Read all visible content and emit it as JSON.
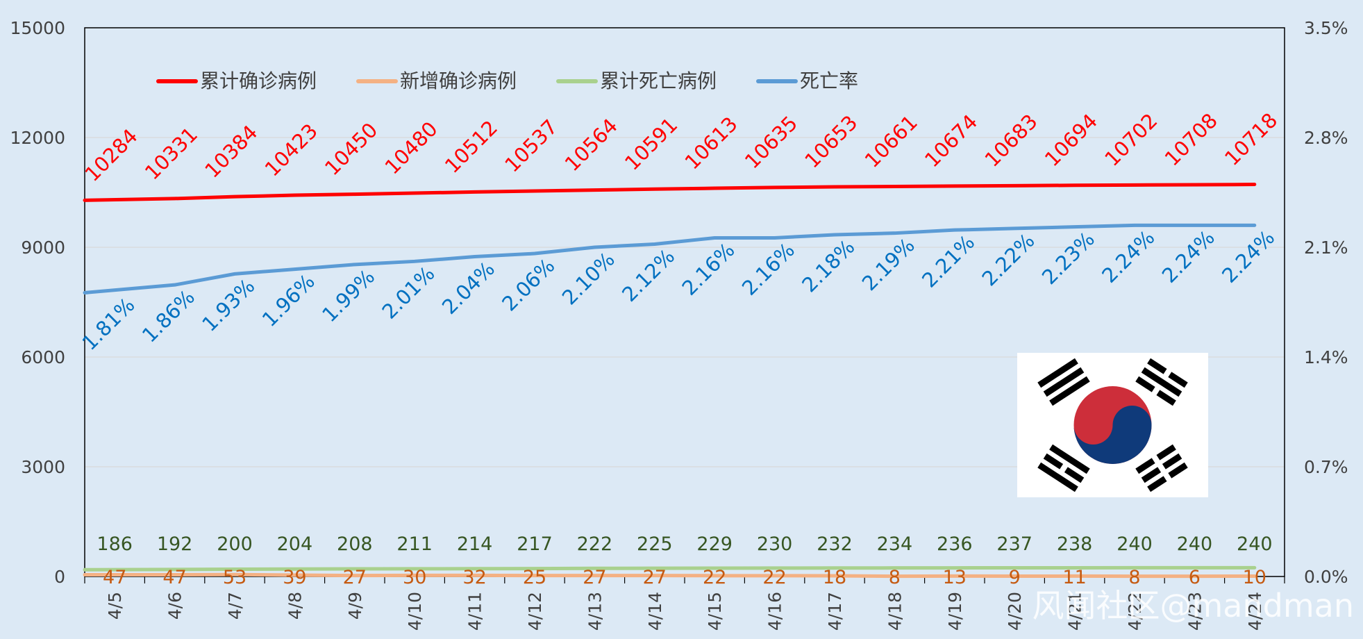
{
  "chart_data": {
    "type": "line",
    "categories": [
      "4/5",
      "4/6",
      "4/7",
      "4/8",
      "4/9",
      "4/10",
      "4/11",
      "4/12",
      "4/13",
      "4/14",
      "4/15",
      "4/16",
      "4/17",
      "4/18",
      "4/19",
      "4/20",
      "4/21",
      "4/22",
      "4/23",
      "4/24"
    ],
    "left_axis": {
      "ylim": [
        0,
        15000
      ],
      "ticks": [
        "0",
        "3000",
        "6000",
        "9000",
        "12000",
        "15000"
      ]
    },
    "right_axis": {
      "ylim": [
        0,
        3.5
      ],
      "ticks": [
        "0.0%",
        "0.7%",
        "1.4%",
        "2.1%",
        "2.8%",
        "3.5%"
      ]
    },
    "series": [
      {
        "name": "累计确诊病例",
        "color": "#ff0000",
        "axis": "left",
        "label_color": "#ff0000",
        "values": [
          10284,
          10331,
          10384,
          10423,
          10450,
          10480,
          10512,
          10537,
          10564,
          10591,
          10613,
          10635,
          10653,
          10661,
          10674,
          10683,
          10694,
          10702,
          10708,
          10718
        ],
        "labels": [
          "10284",
          "10331",
          "10384",
          "10423",
          "10450",
          "10480",
          "10512",
          "10537",
          "10564",
          "10591",
          "10613",
          "10635",
          "10653",
          "10661",
          "10674",
          "10683",
          "10694",
          "10702",
          "10708",
          "10718"
        ]
      },
      {
        "name": "新增确诊病例",
        "color": "#f4b183",
        "axis": "left",
        "label_color": "#c55a11",
        "values": [
          47,
          47,
          53,
          39,
          27,
          30,
          32,
          25,
          27,
          27,
          22,
          22,
          18,
          8,
          13,
          9,
          11,
          8,
          6,
          10
        ],
        "labels": [
          "47",
          "47",
          "53",
          "39",
          "27",
          "30",
          "32",
          "25",
          "27",
          "27",
          "22",
          "22",
          "18",
          "8",
          "13",
          "9",
          "11",
          "8",
          "6",
          "10"
        ]
      },
      {
        "name": "累计死亡病例",
        "color": "#a9d18e",
        "axis": "left",
        "label_color": "#375623",
        "values": [
          186,
          192,
          200,
          204,
          208,
          211,
          214,
          217,
          222,
          225,
          229,
          230,
          232,
          234,
          236,
          237,
          238,
          240,
          240,
          240
        ],
        "labels": [
          "186",
          "192",
          "200",
          "204",
          "208",
          "211",
          "214",
          "217",
          "222",
          "225",
          "229",
          "230",
          "232",
          "234",
          "236",
          "237",
          "238",
          "240",
          "240",
          "240"
        ]
      },
      {
        "name": "死亡率",
        "color": "#5b9bd5",
        "axis": "right",
        "label_color": "#0070c0",
        "values": [
          1.81,
          1.86,
          1.93,
          1.96,
          1.99,
          2.01,
          2.04,
          2.06,
          2.1,
          2.12,
          2.16,
          2.16,
          2.18,
          2.19,
          2.21,
          2.22,
          2.23,
          2.24,
          2.24,
          2.24
        ],
        "labels": [
          "1.81%",
          "1.86%",
          "1.93%",
          "1.96%",
          "1.99%",
          "2.01%",
          "2.04%",
          "2.06%",
          "2.10%",
          "2.12%",
          "2.16%",
          "2.16%",
          "2.18%",
          "2.19%",
          "2.21%",
          "2.22%",
          "2.23%",
          "2.24%",
          "2.24%",
          "2.24%"
        ]
      }
    ],
    "legend": "top-left",
    "grid": true
  },
  "watermark": {
    "text": "风闻社区@mandman"
  },
  "flag": {
    "name": "south-korea-flag"
  }
}
